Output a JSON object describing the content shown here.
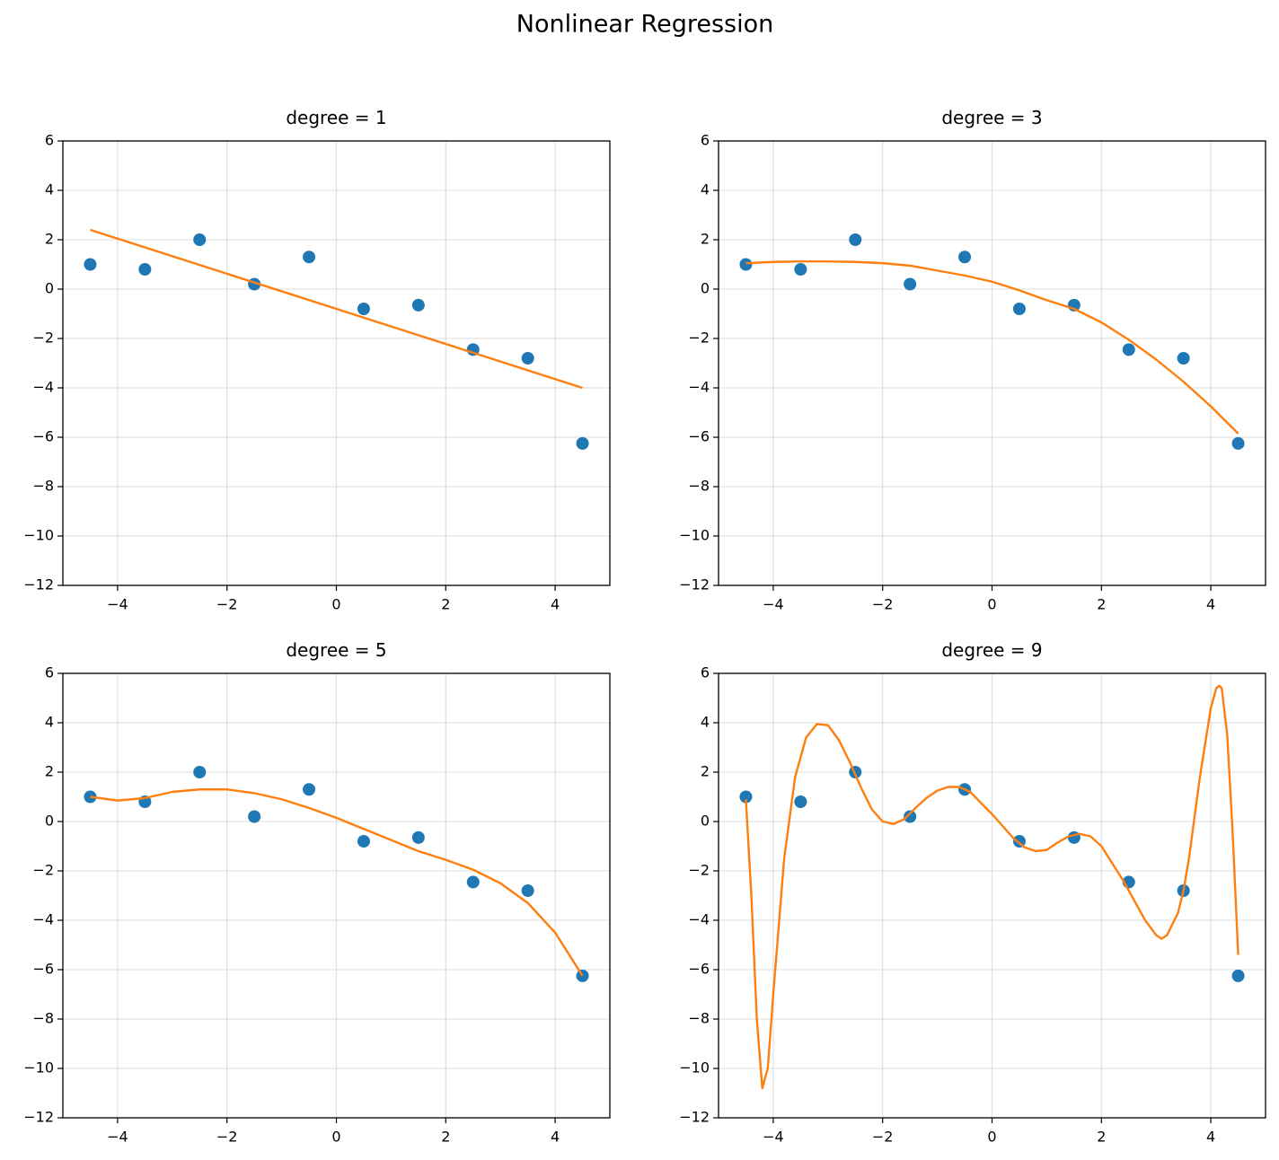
{
  "title": "Nonlinear Regression",
  "chart_data": [
    {
      "type": "scatter",
      "title": "degree = 1",
      "xlim": [
        -5,
        5
      ],
      "ylim": [
        -12,
        6
      ],
      "grid": true,
      "xticks": [
        {
          "value": -4,
          "label": "−4"
        },
        {
          "value": -2,
          "label": "−2"
        },
        0,
        2,
        4
      ],
      "yticks": [
        {
          "value": -12,
          "label": "−12"
        },
        {
          "value": -10,
          "label": "−10"
        },
        {
          "value": -8,
          "label": "−8"
        },
        {
          "value": -6,
          "label": "−6"
        },
        {
          "value": -4,
          "label": "−4"
        },
        {
          "value": -2,
          "label": "−2"
        },
        0,
        2,
        4,
        6
      ],
      "series": [
        {
          "type": "scatter",
          "color": "#1f77b4",
          "x": [
            -4.5,
            -3.5,
            -2.5,
            -1.5,
            -0.5,
            0.5,
            1.5,
            2.5,
            3.5,
            4.5
          ],
          "values": [
            1.0,
            0.8,
            2.0,
            0.2,
            1.3,
            -0.8,
            -0.65,
            -2.45,
            -2.8,
            -6.25
          ]
        },
        {
          "type": "line",
          "color": "#ff7f0e",
          "x": [
            -4.5,
            4.5
          ],
          "values": [
            2.4,
            -4.0
          ]
        }
      ]
    },
    {
      "type": "scatter",
      "title": "degree = 3",
      "xlim": [
        -5,
        5
      ],
      "ylim": [
        -12,
        6
      ],
      "grid": true,
      "xticks": [
        {
          "value": -4,
          "label": "−4"
        },
        {
          "value": -2,
          "label": "−2"
        },
        0,
        2,
        4
      ],
      "yticks": [
        {
          "value": -12,
          "label": "−12"
        },
        {
          "value": -10,
          "label": "−10"
        },
        {
          "value": -8,
          "label": "−8"
        },
        {
          "value": -6,
          "label": "−6"
        },
        {
          "value": -4,
          "label": "−4"
        },
        {
          "value": -2,
          "label": "−2"
        },
        0,
        2,
        4,
        6
      ],
      "series": [
        {
          "type": "scatter",
          "color": "#1f77b4",
          "x": [
            -4.5,
            -3.5,
            -2.5,
            -1.5,
            -0.5,
            0.5,
            1.5,
            2.5,
            3.5,
            4.5
          ],
          "values": [
            1.0,
            0.8,
            2.0,
            0.2,
            1.3,
            -0.8,
            -0.65,
            -2.45,
            -2.8,
            -6.25
          ]
        },
        {
          "type": "line",
          "color": "#ff7f0e",
          "x": [
            -4.5,
            -4,
            -3.5,
            -3,
            -2.5,
            -2,
            -1.5,
            -1,
            -0.5,
            0,
            0.5,
            1,
            1.5,
            2,
            2.5,
            3,
            3.5,
            4,
            4.5
          ],
          "values": [
            1.05,
            1.1,
            1.12,
            1.12,
            1.1,
            1.05,
            0.95,
            0.75,
            0.55,
            0.3,
            -0.05,
            -0.45,
            -0.8,
            -1.35,
            -2.05,
            -2.85,
            -3.75,
            -4.75,
            -5.85
          ]
        }
      ]
    },
    {
      "type": "scatter",
      "title": "degree = 5",
      "xlim": [
        -5,
        5
      ],
      "ylim": [
        -12,
        6
      ],
      "grid": true,
      "xticks": [
        {
          "value": -4,
          "label": "−4"
        },
        {
          "value": -2,
          "label": "−2"
        },
        0,
        2,
        4
      ],
      "yticks": [
        {
          "value": -12,
          "label": "−12"
        },
        {
          "value": -10,
          "label": "−10"
        },
        {
          "value": -8,
          "label": "−8"
        },
        {
          "value": -6,
          "label": "−6"
        },
        {
          "value": -4,
          "label": "−4"
        },
        {
          "value": -2,
          "label": "−2"
        },
        0,
        2,
        4,
        6
      ],
      "series": [
        {
          "type": "scatter",
          "color": "#1f77b4",
          "x": [
            -4.5,
            -3.5,
            -2.5,
            -1.5,
            -0.5,
            0.5,
            1.5,
            2.5,
            3.5,
            4.5
          ],
          "values": [
            1.0,
            0.8,
            2.0,
            0.2,
            1.3,
            -0.8,
            -0.65,
            -2.45,
            -2.8,
            -6.25
          ]
        },
        {
          "type": "line",
          "color": "#ff7f0e",
          "x": [
            -4.5,
            -4,
            -3.5,
            -3,
            -2.5,
            -2,
            -1.5,
            -1,
            -0.5,
            0,
            0.5,
            1,
            1.5,
            2,
            2.5,
            3,
            3.5,
            4,
            4.5
          ],
          "values": [
            1.0,
            0.85,
            0.95,
            1.2,
            1.3,
            1.3,
            1.15,
            0.9,
            0.55,
            0.15,
            -0.3,
            -0.75,
            -1.2,
            -1.55,
            -1.95,
            -2.5,
            -3.3,
            -4.5,
            -6.25
          ]
        }
      ]
    },
    {
      "type": "scatter",
      "title": "degree = 9",
      "xlim": [
        -5,
        5
      ],
      "ylim": [
        -12,
        6
      ],
      "grid": true,
      "xticks": [
        {
          "value": -4,
          "label": "−4"
        },
        {
          "value": -2,
          "label": "−2"
        },
        0,
        2,
        4
      ],
      "yticks": [
        {
          "value": -12,
          "label": "−12"
        },
        {
          "value": -10,
          "label": "−10"
        },
        {
          "value": -8,
          "label": "−8"
        },
        {
          "value": -6,
          "label": "−6"
        },
        {
          "value": -4,
          "label": "−4"
        },
        {
          "value": -2,
          "label": "−2"
        },
        0,
        2,
        4,
        6
      ],
      "series": [
        {
          "type": "scatter",
          "color": "#1f77b4",
          "x": [
            -4.5,
            -3.5,
            -2.5,
            -1.5,
            -0.5,
            0.5,
            1.5,
            2.5,
            3.5,
            4.5
          ],
          "values": [
            1.0,
            0.8,
            2.0,
            0.2,
            1.3,
            -0.8,
            -0.65,
            -2.45,
            -2.8,
            -6.25
          ]
        },
        {
          "type": "line",
          "color": "#ff7f0e",
          "x": [
            -4.5,
            -4.4,
            -4.3,
            -4.2,
            -4.1,
            -4.0,
            -3.8,
            -3.6,
            -3.4,
            -3.2,
            -3.0,
            -2.8,
            -2.6,
            -2.4,
            -2.2,
            -2.0,
            -1.8,
            -1.6,
            -1.4,
            -1.2,
            -1.0,
            -0.8,
            -0.6,
            -0.4,
            -0.2,
            0,
            0.2,
            0.4,
            0.6,
            0.8,
            1.0,
            1.2,
            1.4,
            1.6,
            1.8,
            2.0,
            2.2,
            2.4,
            2.6,
            2.8,
            3.0,
            3.1,
            3.2,
            3.4,
            3.5,
            3.6,
            3.8,
            4.0,
            4.1,
            4.15,
            4.2,
            4.3,
            4.4,
            4.5
          ],
          "values": [
            0.9,
            -3,
            -8,
            -10.8,
            -10,
            -7,
            -1.5,
            1.8,
            3.4,
            3.95,
            3.9,
            3.3,
            2.4,
            1.4,
            0.5,
            0.0,
            -0.1,
            0.1,
            0.55,
            0.95,
            1.25,
            1.4,
            1.4,
            1.2,
            0.75,
            0.3,
            -0.2,
            -0.7,
            -1.05,
            -1.2,
            -1.15,
            -0.85,
            -0.6,
            -0.5,
            -0.6,
            -1.0,
            -1.7,
            -2.4,
            -3.2,
            -4.0,
            -4.6,
            -4.75,
            -4.6,
            -3.7,
            -2.8,
            -1.5,
            1.8,
            4.6,
            5.4,
            5.5,
            5.4,
            3.5,
            -0.5,
            -5.4
          ]
        }
      ]
    }
  ]
}
